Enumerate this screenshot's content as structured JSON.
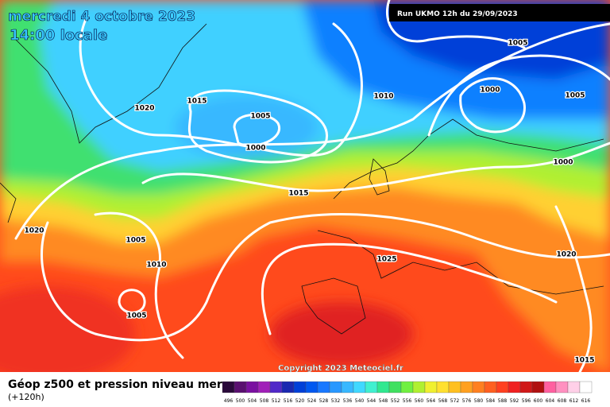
{
  "header": {
    "date": "mercredi 4 octobre 2023",
    "time": "14:00 locale",
    "run": "Run UKMO 12h du 29/09/2023"
  },
  "isobar_labels": [
    1005,
    1015,
    1010,
    1020,
    1005,
    1000,
    1000,
    1005,
    1000,
    1015,
    1020,
    1005,
    1010,
    1005,
    1025,
    1020,
    1015
  ],
  "footer": {
    "title": "Géop z500 et pression niveau mer",
    "subtitle": "(+120h)",
    "copyright": "Copyright 2023 Meteociel.fr"
  },
  "scale": {
    "labels": [
      496,
      500,
      504,
      508,
      512,
      516,
      520,
      524,
      528,
      532,
      536,
      540,
      544,
      548,
      552,
      556,
      560,
      564,
      568,
      572,
      576,
      580,
      584,
      588,
      592,
      596,
      600,
      604,
      608,
      612,
      616
    ],
    "colors": [
      "#2a0a3a",
      "#5a1070",
      "#7a10a0",
      "#a020b8",
      "#5028c8",
      "#1a28b0",
      "#0040d8",
      "#0058f0",
      "#1878ff",
      "#2898ff",
      "#38b8ff",
      "#40d8ff",
      "#40f0d0",
      "#30e890",
      "#40e060",
      "#70f040",
      "#b0f030",
      "#f0f030",
      "#ffe030",
      "#ffc020",
      "#ffa020",
      "#ff8020",
      "#ff6020",
      "#ff4020",
      "#f02020",
      "#d01818",
      "#b01010",
      "#ff60a0",
      "#ff90c0",
      "#ffd0e8",
      "#ffffff"
    ]
  }
}
